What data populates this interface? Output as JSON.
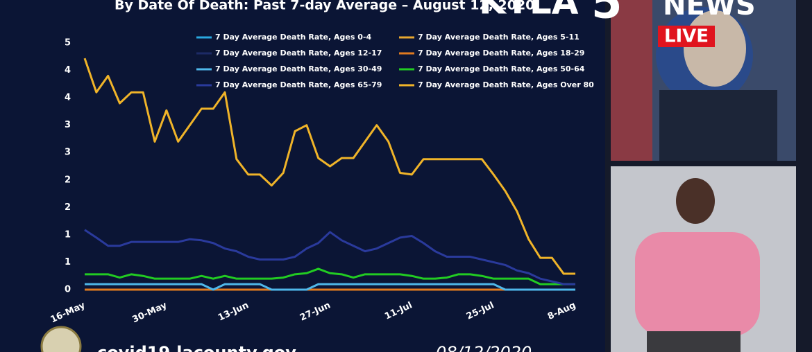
{
  "chart_data": {
    "type": "line",
    "title": "By Date Of Death: Past 7-day Average – August 12, 2020",
    "categories": [
      "16-May",
      null,
      null,
      null,
      null,
      null,
      null,
      "30-May",
      null,
      null,
      null,
      null,
      null,
      null,
      "13-Jun",
      null,
      null,
      null,
      null,
      null,
      null,
      "27-Jun",
      null,
      null,
      null,
      null,
      null,
      null,
      "11-Jul",
      null,
      null,
      null,
      null,
      null,
      null,
      "25-Jul",
      null,
      null,
      null,
      null,
      null,
      null,
      "8-Aug"
    ],
    "ylim": [
      0,
      4.5
    ],
    "yticks": [
      0,
      {
        "value": 0.5,
        "label": "1"
      },
      1,
      {
        "value": 1.5,
        "label": "2"
      },
      2,
      {
        "value": 2.5,
        "label": "3"
      },
      3,
      {
        "value": 3.5,
        "label": "4"
      },
      4,
      {
        "value": 4.5,
        "label": "5"
      }
    ],
    "grid": false,
    "series": [
      {
        "name": "7 Day Average Death Rate, Ages 0-4",
        "color": "#2aa8e0",
        "values": [
          0,
          0,
          0,
          0,
          0,
          0,
          0,
          0,
          0,
          0,
          0,
          0,
          0,
          0,
          0,
          0,
          0,
          0,
          0,
          0,
          0,
          0,
          0,
          0,
          0,
          0,
          0,
          0,
          0,
          0,
          0,
          0,
          0,
          0,
          0,
          0,
          0,
          0,
          0,
          0,
          0,
          0,
          0
        ]
      },
      {
        "name": "7 Day Average Death Rate, Ages 5-11",
        "color": "#e8a830",
        "values": [
          0,
          0,
          0,
          0,
          0,
          0,
          0,
          0,
          0,
          0,
          0,
          0,
          0,
          0,
          0,
          0,
          0,
          0,
          0,
          0,
          0,
          0,
          0,
          0,
          0,
          0,
          0,
          0,
          0,
          0,
          0,
          0,
          0,
          0,
          0,
          0,
          0,
          0,
          0,
          0,
          0,
          0,
          0
        ]
      },
      {
        "name": "7 Day Average Death Rate, Ages 12-17",
        "color": "#1c2a66",
        "values": [
          0,
          0,
          0,
          0,
          0,
          0,
          0,
          0,
          0,
          0,
          0,
          0,
          0,
          0,
          0,
          0,
          0,
          0,
          0,
          0,
          0,
          0,
          0,
          0,
          0,
          0,
          0,
          0,
          0,
          0,
          0,
          0,
          0,
          0,
          0,
          0,
          0,
          0,
          0,
          0,
          0,
          0,
          0
        ]
      },
      {
        "name": "7 Day Average Death Rate, Ages 18-29",
        "color": "#e07a20",
        "values": [
          0,
          0,
          0,
          0,
          0,
          0,
          0,
          0,
          0,
          0,
          0,
          0,
          0,
          0,
          0,
          0,
          0,
          0,
          0,
          0,
          0,
          0,
          0,
          0,
          0,
          0,
          0,
          0,
          0,
          0,
          0,
          0,
          0,
          0,
          0,
          0,
          0,
          0,
          0,
          0,
          0,
          0,
          0
        ]
      },
      {
        "name": "7 Day Average Death Rate, Ages 30-49",
        "color": "#4fb8ea",
        "values": [
          0.1,
          0.1,
          0.1,
          0.1,
          0.1,
          0.1,
          0.1,
          0.1,
          0.1,
          0.1,
          0.1,
          0,
          0.1,
          0.1,
          0.1,
          0.1,
          0,
          0,
          0,
          0,
          0.1,
          0.1,
          0.1,
          0.1,
          0.1,
          0.1,
          0.1,
          0.1,
          0.1,
          0.1,
          0.1,
          0.1,
          0.1,
          0.1,
          0.1,
          0.1,
          0,
          0,
          0,
          0,
          0,
          0,
          0
        ]
      },
      {
        "name": "7 Day Average Death Rate, Ages 50-64",
        "color": "#22cc22",
        "values": [
          0.28,
          0.28,
          0.28,
          0.22,
          0.28,
          0.25,
          0.2,
          0.2,
          0.2,
          0.2,
          0.25,
          0.2,
          0.25,
          0.2,
          0.2,
          0.2,
          0.2,
          0.22,
          0.28,
          0.3,
          0.38,
          0.3,
          0.28,
          0.22,
          0.28,
          0.28,
          0.28,
          0.28,
          0.25,
          0.2,
          0.2,
          0.22,
          0.28,
          0.28,
          0.25,
          0.2,
          0.2,
          0.2,
          0.2,
          0.1,
          0.1,
          0.1,
          0.1
        ]
      },
      {
        "name": "7 Day Average Death Rate, Ages 65-79",
        "color": "#2a3a9c",
        "values": [
          1.09,
          0.95,
          0.8,
          0.8,
          0.87,
          0.87,
          0.87,
          0.87,
          0.87,
          0.92,
          0.9,
          0.85,
          0.75,
          0.7,
          0.6,
          0.55,
          0.55,
          0.55,
          0.6,
          0.75,
          0.85,
          1.05,
          0.9,
          0.8,
          0.7,
          0.75,
          0.85,
          0.95,
          0.98,
          0.85,
          0.7,
          0.6,
          0.6,
          0.6,
          0.55,
          0.5,
          0.45,
          0.35,
          0.3,
          0.2,
          0.15,
          0.1,
          0.1
        ]
      },
      {
        "name": "7 Day Average Death Rate, Ages Over 80",
        "color": "#f0b429",
        "values": [
          4.22,
          3.6,
          3.9,
          3.4,
          3.6,
          3.6,
          2.7,
          3.27,
          2.7,
          3.0,
          3.3,
          3.3,
          3.6,
          2.38,
          2.1,
          2.1,
          1.9,
          2.13,
          2.89,
          3.0,
          2.4,
          2.25,
          2.4,
          2.4,
          2.7,
          3.0,
          2.7,
          2.13,
          2.1,
          2.38,
          2.38,
          2.38,
          2.38,
          2.38,
          2.38,
          2.1,
          1.8,
          1.43,
          0.92,
          0.58,
          0.58,
          0.29,
          0.29
        ]
      }
    ]
  },
  "overlay": {
    "station": "KTLA",
    "channel": "5",
    "news": "NEWS",
    "live": "LIVE",
    "website": "covid19.lacounty.gov",
    "date": "08/12/2020"
  }
}
